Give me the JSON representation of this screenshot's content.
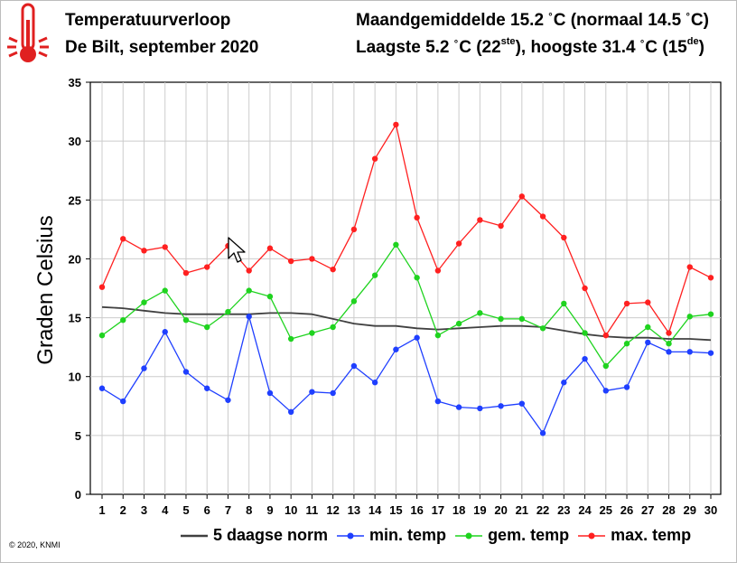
{
  "header": {
    "title": "Temperatuurverloop",
    "subtitle": "De Bilt, september 2020",
    "monthly_avg_text": "Maandgemiddelde 15.2",
    "deg_unit": "°",
    "monthly_avg_unit": "C (normaal 14.5",
    "monthly_avg_end": "C)",
    "extremes_low": "Laagste 5.2",
    "extremes_low_unit": "C (22",
    "extremes_low_sup": "ste",
    "extremes_mid": "), hoogste 31.4",
    "extremes_high_unit": "C (15",
    "extremes_high_sup": "de",
    "extremes_end": ")"
  },
  "footer": {
    "copyright": "© 2020, KNMI"
  },
  "colors": {
    "norm": "#404040",
    "min": "#1f3fff",
    "avg": "#1fd31f",
    "max": "#ff2020",
    "grid": "#cccccc",
    "thermometer": "#e02020"
  },
  "icons": {
    "thermometer": "thermometer-icon",
    "cursor": "mouse-pointer-icon"
  },
  "chart_data": {
    "type": "line",
    "title": "Temperatuurverloop",
    "xlabel": "",
    "ylabel": "Graden Celsius",
    "ylim": [
      0,
      35
    ],
    "yticks": [
      0,
      5,
      10,
      15,
      20,
      25,
      30,
      35
    ],
    "grid": true,
    "legend_position": "bottom",
    "x": [
      1,
      2,
      3,
      4,
      5,
      6,
      7,
      8,
      9,
      10,
      11,
      12,
      13,
      14,
      15,
      16,
      17,
      18,
      19,
      20,
      21,
      22,
      23,
      24,
      25,
      26,
      27,
      28,
      29,
      30
    ],
    "series": [
      {
        "name": "5 daagse norm",
        "key": "norm",
        "markers": false,
        "values": [
          15.9,
          15.8,
          15.6,
          15.4,
          15.3,
          15.3,
          15.3,
          15.3,
          15.4,
          15.4,
          15.3,
          14.9,
          14.5,
          14.3,
          14.3,
          14.1,
          14.0,
          14.1,
          14.2,
          14.3,
          14.3,
          14.2,
          13.9,
          13.6,
          13.4,
          13.3,
          13.3,
          13.2,
          13.2,
          13.1
        ]
      },
      {
        "name": "min. temp",
        "key": "min",
        "markers": true,
        "values": [
          9.0,
          7.9,
          10.7,
          13.8,
          10.4,
          9.0,
          8.0,
          15.1,
          8.6,
          7.0,
          8.7,
          8.6,
          10.9,
          9.5,
          12.3,
          13.3,
          7.9,
          7.4,
          7.3,
          7.5,
          7.7,
          5.2,
          9.5,
          11.5,
          8.8,
          9.1,
          12.9,
          12.1,
          12.1,
          12.0
        ]
      },
      {
        "name": "gem. temp",
        "key": "avg",
        "markers": true,
        "values": [
          13.5,
          14.8,
          16.3,
          17.3,
          14.8,
          14.2,
          15.5,
          17.3,
          16.8,
          13.2,
          13.7,
          14.2,
          16.4,
          18.6,
          21.2,
          18.4,
          13.5,
          14.5,
          15.4,
          14.9,
          14.9,
          14.1,
          16.2,
          13.7,
          10.9,
          12.8,
          14.2,
          12.8,
          15.1,
          15.3
        ]
      },
      {
        "name": "max. temp",
        "key": "max",
        "markers": true,
        "values": [
          17.6,
          21.7,
          20.7,
          21.0,
          18.8,
          19.3,
          21.1,
          19.0,
          20.9,
          19.8,
          20.0,
          19.1,
          22.5,
          28.5,
          31.4,
          23.5,
          19.0,
          21.3,
          23.3,
          22.8,
          25.3,
          23.6,
          21.8,
          17.5,
          13.5,
          16.2,
          16.3,
          13.7,
          19.3,
          18.4
        ]
      }
    ]
  }
}
